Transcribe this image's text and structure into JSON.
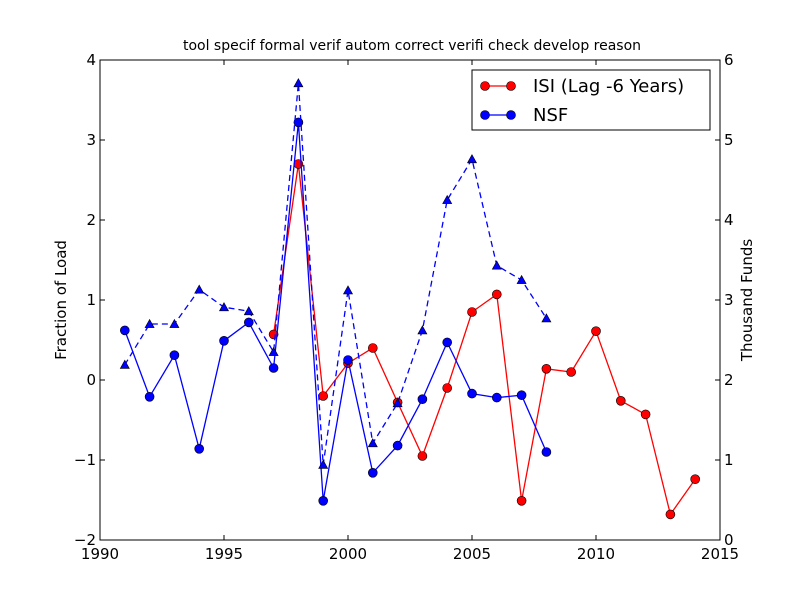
{
  "chart_data": {
    "type": "line",
    "title": "tool specif formal verif autom correct verifi check develop reason",
    "ylabel": "Fraction of Load",
    "y2label": "Thousand Funds",
    "xlim": [
      1990,
      2015
    ],
    "ylim": [
      -2,
      4
    ],
    "y2lim": [
      0,
      6
    ],
    "x_ticks": [
      1990,
      1995,
      2000,
      2005,
      2010,
      2015
    ],
    "y_ticks": [
      -2,
      -1,
      0,
      1,
      2,
      3,
      4
    ],
    "y2_ticks": [
      0,
      1,
      2,
      3,
      4,
      5,
      6
    ],
    "x_tick_labels": [
      "1990",
      "1995",
      "2000",
      "2005",
      "2010",
      "2015"
    ],
    "y_tick_labels": [
      "−2",
      "−1",
      "0",
      "1",
      "2",
      "3",
      "4"
    ],
    "y2_tick_labels": [
      "0",
      "1",
      "2",
      "3",
      "4",
      "5",
      "6"
    ],
    "legend_position": "top-right",
    "series": [
      {
        "name": "ISI (Lag -6 Years)",
        "color": "#ff0000",
        "marker": "circle",
        "axis": "left",
        "x": [
          1997,
          1998,
          1999,
          2000,
          2001,
          2002,
          2003,
          2004,
          2005,
          2006,
          2007,
          2008,
          2009,
          2010,
          2011,
          2012,
          2013,
          2014
        ],
        "values": [
          0.57,
          2.7,
          -0.2,
          0.21,
          0.4,
          -0.28,
          -0.95,
          -0.1,
          0.85,
          1.07,
          -1.51,
          0.14,
          0.1,
          0.61,
          -0.26,
          -0.43,
          -1.68,
          -1.24
        ]
      },
      {
        "name": "NSF",
        "color": "#0000ff",
        "marker": "circle",
        "axis": "left",
        "x": [
          1991,
          1992,
          1993,
          1994,
          1995,
          1996,
          1997,
          1998,
          1999,
          2000,
          2001,
          2002,
          2003,
          2004,
          2005,
          2006,
          2007,
          2008
        ],
        "values": [
          0.62,
          -0.21,
          0.31,
          -0.86,
          0.49,
          0.72,
          0.15,
          3.22,
          -1.51,
          0.25,
          -1.16,
          -0.82,
          -0.24,
          0.47,
          -0.17,
          -0.22,
          -0.19,
          -0.9
        ]
      },
      {
        "color": "#0000ff",
        "marker": "triangle",
        "linestyle": "dashed",
        "axis": "right",
        "x": [
          1991,
          1992,
          1993,
          1994,
          1995,
          1996,
          1997,
          1998,
          1999,
          2000,
          2001,
          2002,
          2003,
          2004,
          2005,
          2006,
          2007,
          2008
        ],
        "values": [
          2.19,
          2.7,
          2.7,
          3.13,
          2.91,
          2.86,
          2.35,
          5.71,
          0.94,
          3.12,
          1.21,
          1.71,
          2.62,
          4.25,
          4.76,
          3.43,
          3.25,
          2.77
        ]
      }
    ]
  }
}
